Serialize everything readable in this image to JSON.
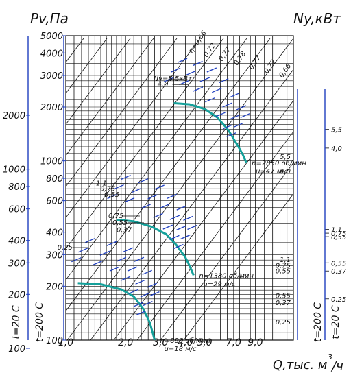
{
  "chart_data": {
    "type": "line",
    "title_left": "Pv,Па",
    "title_right": "Ny,кВт",
    "xlabel": "Q,тыс. м",
    "xlabel_sup": "3",
    "xlabel_unit": "/ч",
    "x_scale": "log",
    "y_scale": "log",
    "xlim": [
      1.0,
      14.0
    ],
    "ylim": [
      100,
      5000
    ],
    "x_ticks": [
      {
        "value": 1.0,
        "label": "1,0"
      },
      {
        "value": 2.0,
        "label": "2,0"
      },
      {
        "value": 3.0,
        "label": "3,0"
      },
      {
        "value": 4.0,
        "label": "4,0"
      },
      {
        "value": 5.0,
        "label": "5,0"
      },
      {
        "value": 7.0,
        "label": "7,0"
      },
      {
        "value": 9.0,
        "label": "9,0"
      }
    ],
    "y_ticks_inner": [
      {
        "value": 100,
        "label": "100"
      },
      {
        "value": 200,
        "label": "200"
      },
      {
        "value": 300,
        "label": "300"
      },
      {
        "value": 400,
        "label": "400"
      },
      {
        "value": 600,
        "label": "600"
      },
      {
        "value": 800,
        "label": "800"
      },
      {
        "value": 1000,
        "label": "1000"
      },
      {
        "value": 2000,
        "label": "2000"
      },
      {
        "value": 3000,
        "label": "3000"
      },
      {
        "value": 4000,
        "label": "4000"
      },
      {
        "value": 5000,
        "label": "5000"
      }
    ],
    "temp_axes": [
      {
        "label": "t=20 С",
        "side": "left"
      },
      {
        "label": "t=200 С",
        "side": "left"
      },
      {
        "label": "t=200 С",
        "side": "right"
      },
      {
        "label": "t=20 С",
        "side": "right"
      }
    ],
    "y_ticks_200c_left": [
      {
        "value": 2000,
        "label": "2000"
      },
      {
        "value": 1000,
        "label": "1000"
      },
      {
        "value": 800,
        "label": "800"
      },
      {
        "value": 600,
        "label": "600"
      },
      {
        "value": 400,
        "label": "400"
      },
      {
        "value": 300,
        "label": "300"
      },
      {
        "value": 200,
        "label": "200"
      },
      {
        "value": 100,
        "label": "100"
      }
    ],
    "fan_speeds": [
      {
        "name": "n=2850 об/мин",
        "tip_speed": "u=47 м/с",
        "points": [
          [
            3.5,
            2100
          ],
          [
            4.2,
            2070
          ],
          [
            5.0,
            1950
          ],
          [
            5.8,
            1750
          ],
          [
            6.6,
            1480
          ],
          [
            7.4,
            1200
          ],
          [
            7.8,
            1080
          ],
          [
            8.1,
            980
          ]
        ],
        "power_ticks": [
          {
            "label": "Ny=5,5кВт",
            "y": 2790
          },
          {
            "label": "4,0",
            "y": 2600
          }
        ],
        "efficiency_labels": [
          "η=0,66",
          "0,72",
          "0,77",
          "0,78",
          "0,77",
          "0,72",
          "0,66"
        ],
        "right_power_labels": [
          {
            "label": "5,5",
            "y": 1060
          },
          {
            "label": "4,0",
            "y": 880
          }
        ],
        "right_power_axis": [
          {
            "label": "5,5",
            "y": 1500
          },
          {
            "label": "4,0",
            "y": 1180
          }
        ]
      },
      {
        "name": "n=1380 об/мин",
        "tip_speed": "u=29 м/с",
        "points": [
          [
            1.8,
            470
          ],
          [
            2.2,
            460
          ],
          [
            2.7,
            430
          ],
          [
            3.2,
            390
          ],
          [
            3.6,
            340
          ],
          [
            4.0,
            290
          ],
          [
            4.2,
            260
          ],
          [
            4.4,
            230
          ]
        ],
        "power_ticks": [
          {
            "label": "1,1",
            "y": 730
          },
          {
            "label": "0,75",
            "y": 680
          },
          {
            "label": "0,55",
            "y": 630
          },
          {
            "label": "0,75",
            "y": 480
          },
          {
            "label": "0,55",
            "y": 440
          },
          {
            "label": "0,37",
            "y": 400
          }
        ],
        "right_power_labels": [
          {
            "label": "1,1",
            "y": 283
          },
          {
            "label": "0,75",
            "y": 262
          },
          {
            "label": "0,55",
            "y": 245
          }
        ],
        "right_power_axis": [
          {
            "label": "1,1",
            "y": 415
          },
          {
            "label": "0,75",
            "y": 395
          },
          {
            "label": "0,55",
            "y": 378
          },
          {
            "label": "0,55",
            "y": 270
          },
          {
            "label": "0,37",
            "y": 243
          }
        ]
      },
      {
        "name": "n=880 об/мин",
        "tip_speed": "u=18 м/с",
        "points": [
          [
            1.15,
            208
          ],
          [
            1.5,
            205
          ],
          [
            1.9,
            192
          ],
          [
            2.2,
            175
          ],
          [
            2.45,
            150
          ],
          [
            2.65,
            125
          ],
          [
            2.75,
            108
          ],
          [
            2.8,
            100
          ]
        ],
        "power_ticks": [
          {
            "label": "0,25",
            "y": 320
          }
        ],
        "right_power_labels": [
          {
            "label": "0,55",
            "y": 178
          },
          {
            "label": "0,37",
            "y": 162
          },
          {
            "label": "0,25",
            "y": 127
          }
        ],
        "right_power_axis": [
          {
            "label": "0,25",
            "y": 170
          }
        ]
      }
    ]
  }
}
